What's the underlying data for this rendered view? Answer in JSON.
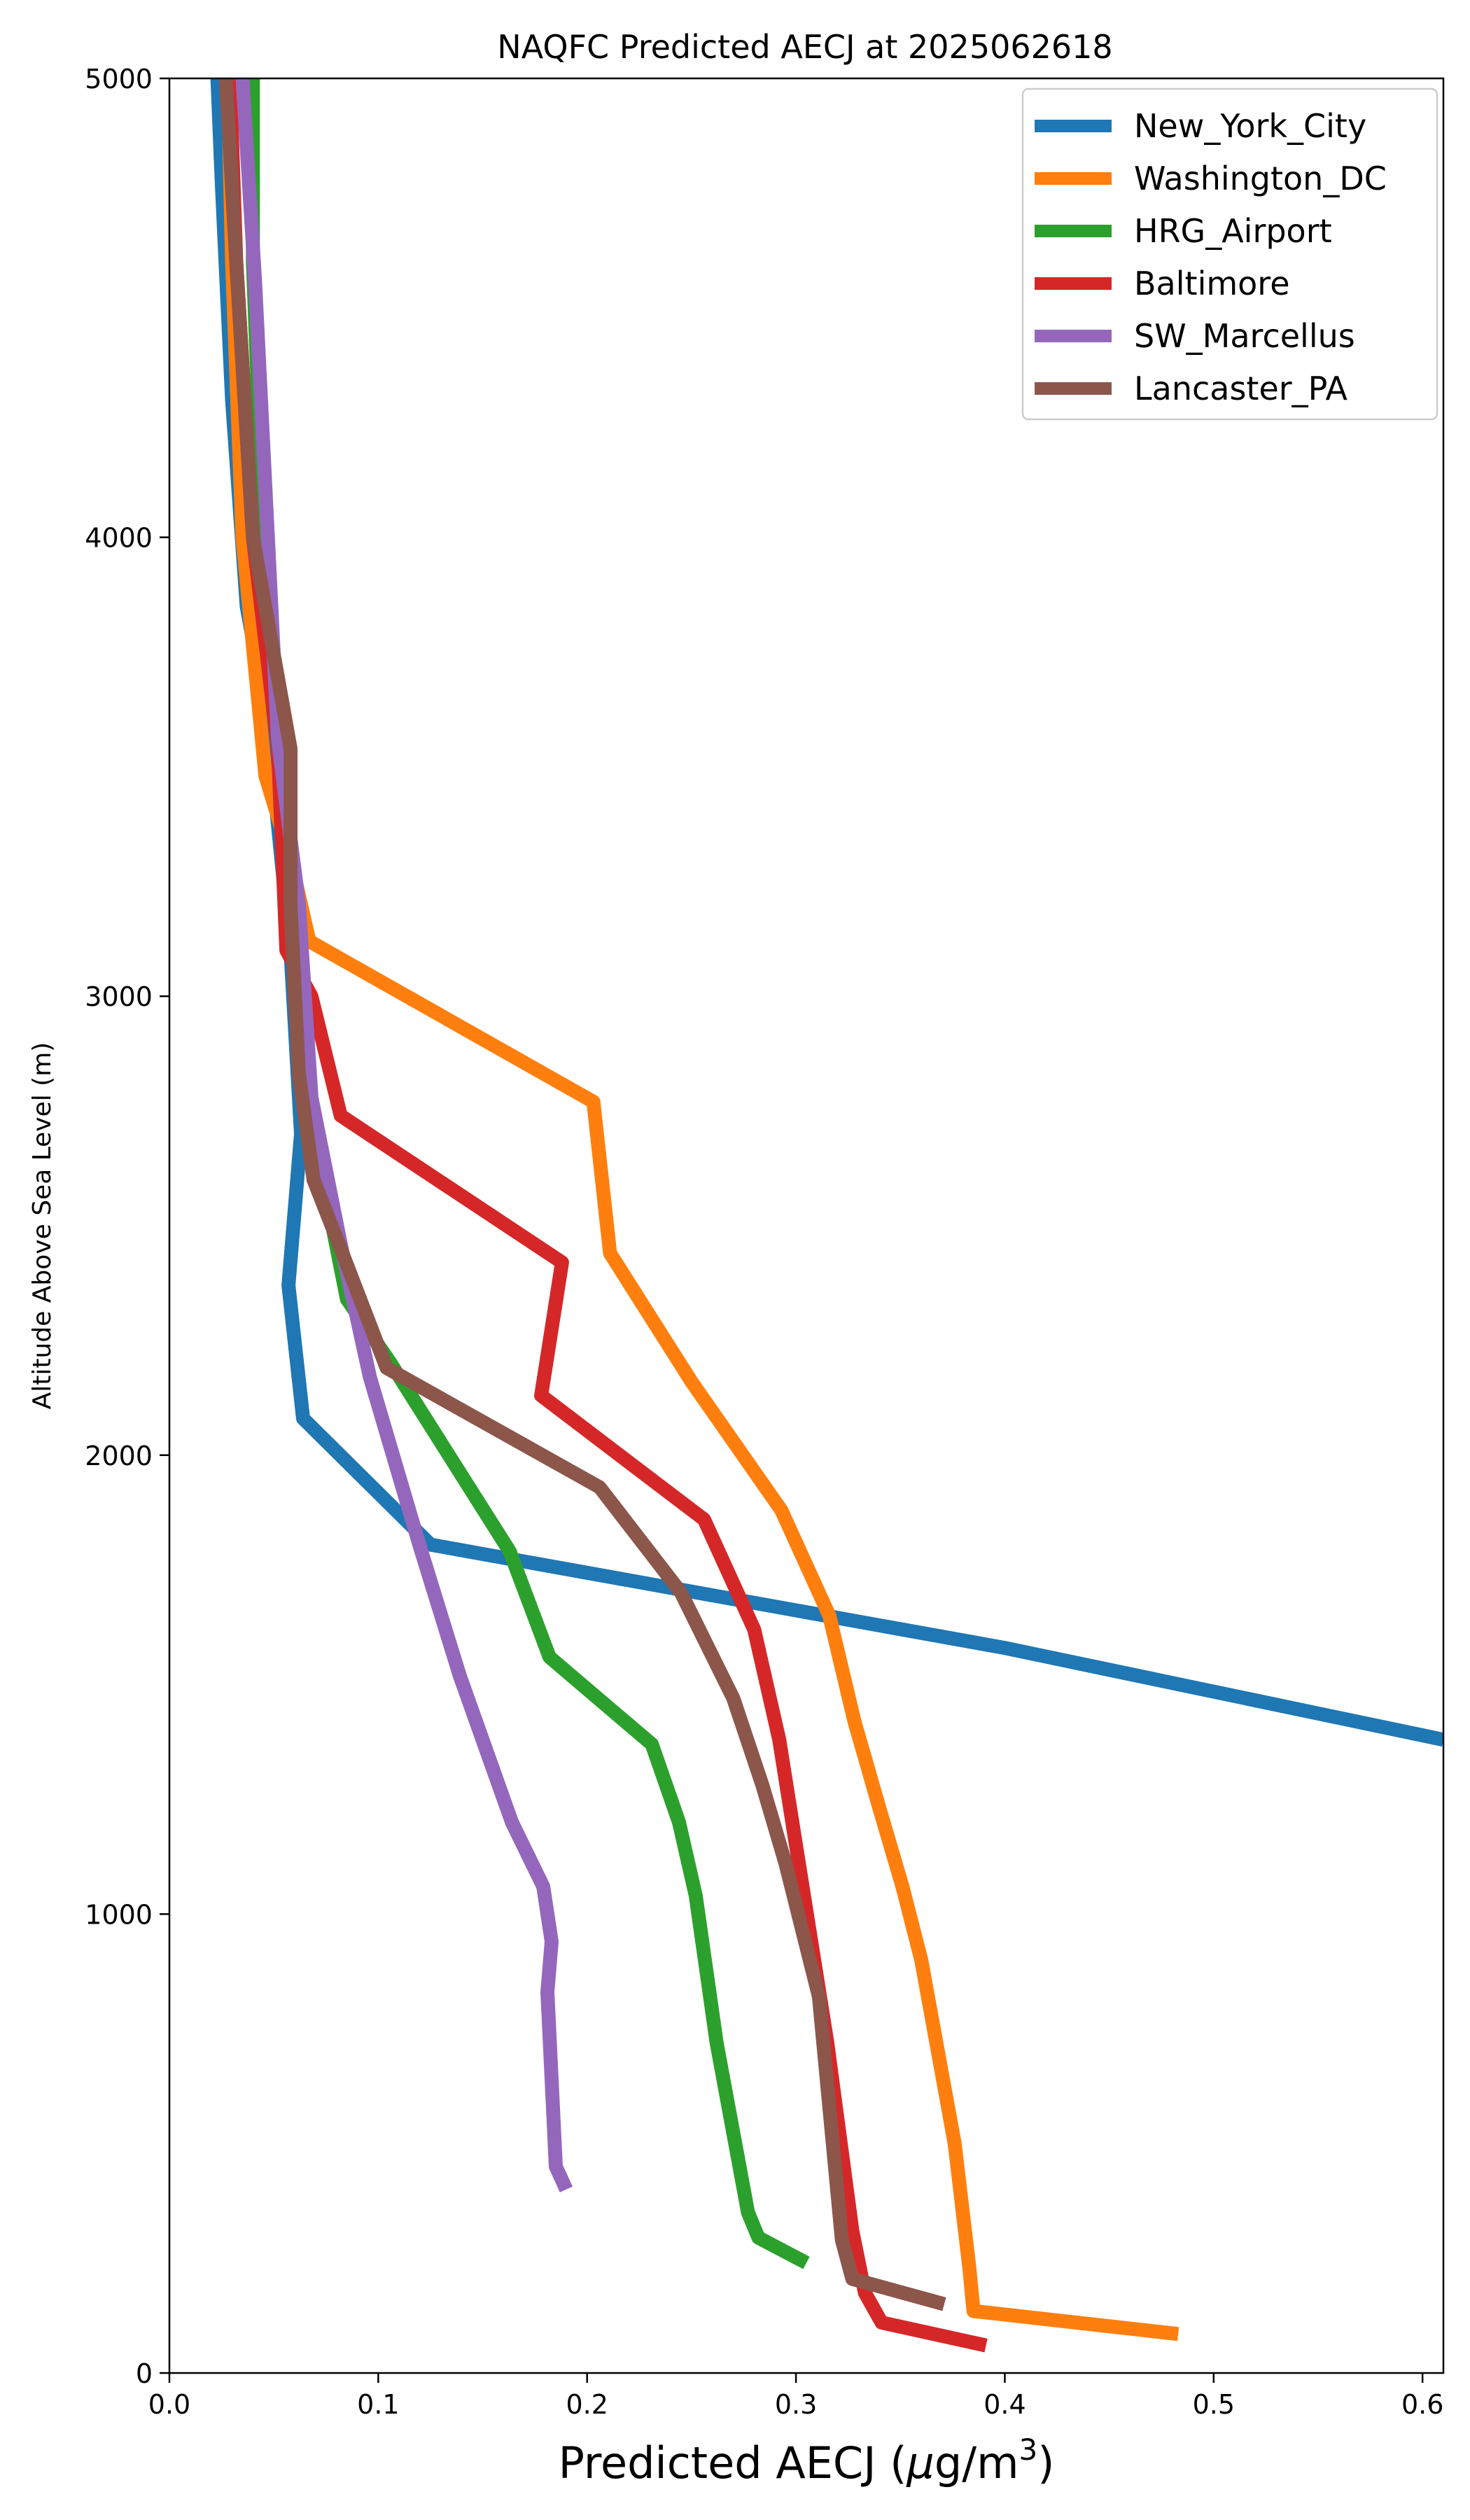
{
  "chart_data": {
    "type": "line",
    "title": "NAQFC Predicted AECJ at 2025062618",
    "xlabel_main": "Predicted AECJ (",
    "xlabel_mu": "μ",
    "xlabel_unit": "g/m",
    "xlabel_exp": "3",
    "xlabel_close": ")",
    "ylabel": "Altitude Above Sea Level (m)",
    "xlim": [
      0,
      0.61
    ],
    "ylim": [
      0,
      5000
    ],
    "xticks": [
      "0.0",
      "0.1",
      "0.2",
      "0.3",
      "0.4",
      "0.5",
      "0.6"
    ],
    "yticks": [
      "0",
      "1000",
      "2000",
      "3000",
      "4000",
      "5000"
    ],
    "grid": false,
    "legend_position": "top-right",
    "series": [
      {
        "name": "New_York_City",
        "color": "#1f77b4",
        "points": [
          [
            0.61,
            1380
          ],
          [
            0.4,
            1580
          ],
          [
            0.125,
            1805
          ],
          [
            0.064,
            2080
          ],
          [
            0.057,
            2370
          ],
          [
            0.063,
            2700
          ],
          [
            0.058,
            3100
          ],
          [
            0.047,
            3600
          ],
          [
            0.037,
            3850
          ],
          [
            0.03,
            4300
          ],
          [
            0.025,
            4780
          ],
          [
            0.023,
            5000
          ]
        ]
      },
      {
        "name": "Washington_DC",
        "color": "#ff7f0e",
        "points": [
          [
            0.483,
            85
          ],
          [
            0.385,
            135
          ],
          [
            0.383,
            230
          ],
          [
            0.376,
            500
          ],
          [
            0.36,
            900
          ],
          [
            0.351,
            1060
          ],
          [
            0.34,
            1230
          ],
          [
            0.328,
            1420
          ],
          [
            0.316,
            1650
          ],
          [
            0.293,
            1880
          ],
          [
            0.25,
            2160
          ],
          [
            0.211,
            2440
          ],
          [
            0.203,
            2770
          ],
          [
            0.067,
            3120
          ],
          [
            0.058,
            3300
          ],
          [
            0.046,
            3480
          ],
          [
            0.035,
            4000
          ],
          [
            0.03,
            4600
          ],
          [
            0.028,
            5000
          ]
        ]
      },
      {
        "name": "HRG_Airport",
        "color": "#2ca02c",
        "points": [
          [
            0.305,
            240
          ],
          [
            0.282,
            295
          ],
          [
            0.277,
            350
          ],
          [
            0.262,
            720
          ],
          [
            0.252,
            1040
          ],
          [
            0.244,
            1200
          ],
          [
            0.231,
            1370
          ],
          [
            0.182,
            1560
          ],
          [
            0.163,
            1790
          ],
          [
            0.131,
            2020
          ],
          [
            0.106,
            2200
          ],
          [
            0.085,
            2340
          ],
          [
            0.078,
            2500
          ],
          [
            0.065,
            2800
          ],
          [
            0.06,
            3100
          ],
          [
            0.054,
            3450
          ],
          [
            0.045,
            4000
          ],
          [
            0.04,
            4600
          ],
          [
            0.04,
            5000
          ]
        ]
      },
      {
        "name": "Baltimore",
        "color": "#d62728",
        "points": [
          [
            0.391,
            60
          ],
          [
            0.341,
            110
          ],
          [
            0.333,
            175
          ],
          [
            0.327,
            310
          ],
          [
            0.315,
            720
          ],
          [
            0.292,
            1380
          ],
          [
            0.28,
            1620
          ],
          [
            0.256,
            1860
          ],
          [
            0.178,
            2130
          ],
          [
            0.188,
            2420
          ],
          [
            0.082,
            2740
          ],
          [
            0.068,
            3000
          ],
          [
            0.056,
            3100
          ],
          [
            0.052,
            3540
          ],
          [
            0.04,
            4000
          ],
          [
            0.032,
            4600
          ],
          [
            0.029,
            5000
          ]
        ]
      },
      {
        "name": "SW_Marcellus",
        "color": "#9467bd",
        "points": [
          [
            0.19,
            400
          ],
          [
            0.185,
            450
          ],
          [
            0.181,
            830
          ],
          [
            0.183,
            940
          ],
          [
            0.179,
            1060
          ],
          [
            0.164,
            1200
          ],
          [
            0.139,
            1520
          ],
          [
            0.12,
            1800
          ],
          [
            0.096,
            2170
          ],
          [
            0.082,
            2460
          ],
          [
            0.068,
            2780
          ],
          [
            0.062,
            3200
          ],
          [
            0.052,
            3560
          ],
          [
            0.041,
            4560
          ],
          [
            0.035,
            5000
          ]
        ]
      },
      {
        "name": "Lancaster_PA",
        "color": "#8c564b",
        "points": [
          [
            0.371,
            150
          ],
          [
            0.327,
            205
          ],
          [
            0.322,
            290
          ],
          [
            0.311,
            820
          ],
          [
            0.295,
            1110
          ],
          [
            0.284,
            1280
          ],
          [
            0.27,
            1470
          ],
          [
            0.245,
            1700
          ],
          [
            0.206,
            1930
          ],
          [
            0.104,
            2190
          ],
          [
            0.082,
            2450
          ],
          [
            0.069,
            2600
          ],
          [
            0.062,
            2830
          ],
          [
            0.058,
            3200
          ],
          [
            0.058,
            3540
          ],
          [
            0.04,
            4000
          ],
          [
            0.032,
            4600
          ],
          [
            0.027,
            5000
          ]
        ]
      }
    ]
  }
}
